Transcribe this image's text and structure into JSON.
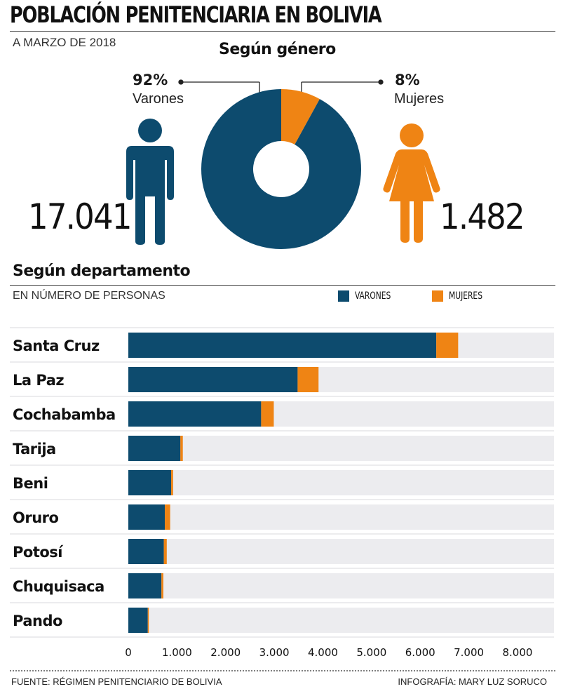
{
  "header": {
    "title": "POBLACIÓN PENITENCIARIA EN BOLIVIA",
    "date": "A MARZO DE 2018"
  },
  "gender": {
    "section_title": "Según género",
    "men": {
      "pct": "92%",
      "label": "Varones",
      "count": "17.041"
    },
    "women": {
      "pct": "8%",
      "label": "Mujeres",
      "count": "1.482"
    }
  },
  "department": {
    "section_title": "Según departamento",
    "subtitle": "EN NÚMERO DE PERSONAS",
    "legend": {
      "men": "VARONES",
      "women": "MUJERES"
    }
  },
  "colors": {
    "men": "#0d4b6e",
    "women": "#ef8414",
    "track": "#ececef",
    "text": "#1a1a1a"
  },
  "icons": {
    "men": "man-icon",
    "women": "woman-icon"
  },
  "footer": {
    "source": "FUENTE: RÉGIMEN PENITENCIARIO DE BOLIVIA",
    "credit": "INFOGRAFÍA: MARY LUZ SORUCO"
  },
  "chart_data": [
    {
      "type": "pie",
      "title": "Según género",
      "labels": [
        "Varones",
        "Mujeres"
      ],
      "values": [
        92,
        8
      ],
      "counts": [
        17041,
        1482
      ],
      "donut": true
    },
    {
      "type": "bar",
      "orientation": "horizontal",
      "stacked": true,
      "title": "Según departamento",
      "subtitle": "EN NÚMERO DE PERSONAS",
      "categories": [
        "Santa Cruz",
        "La Paz",
        "Cochabamba",
        "Tarija",
        "Beni",
        "Oruro",
        "Potosí",
        "Chuquisaca",
        "Pando"
      ],
      "series": [
        {
          "name": "VARONES",
          "values": [
            6330,
            3480,
            2730,
            1070,
            880,
            750,
            730,
            680,
            400
          ]
        },
        {
          "name": "MUJERES",
          "values": [
            450,
            430,
            260,
            50,
            40,
            110,
            60,
            40,
            20
          ]
        }
      ],
      "xlim": [
        0,
        8750
      ],
      "xticks": [
        0,
        1000,
        2000,
        3000,
        4000,
        5000,
        6000,
        7000,
        8000
      ],
      "xtick_labels": [
        "0",
        "1.000",
        "2.000",
        "3.000",
        "4.000",
        "5.000",
        "6.000",
        "7.000",
        "8.000"
      ],
      "legend_position": "top-right",
      "grid": false
    }
  ]
}
